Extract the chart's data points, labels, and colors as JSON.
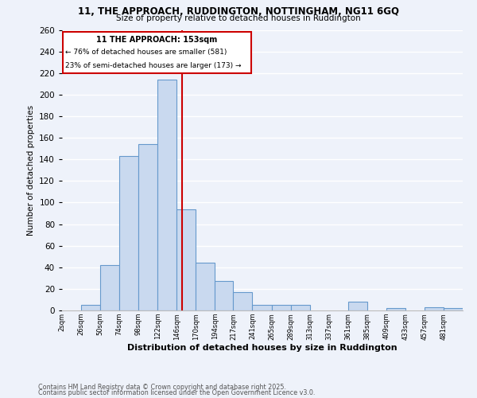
{
  "title1": "11, THE APPROACH, RUDDINGTON, NOTTINGHAM, NG11 6GQ",
  "title2": "Size of property relative to detached houses in Ruddington",
  "xlabel": "Distribution of detached houses by size in Ruddington",
  "ylabel": "Number of detached properties",
  "footer1": "Contains HM Land Registry data © Crown copyright and database right 2025.",
  "footer2": "Contains public sector information licensed under the Open Government Licence v3.0.",
  "annotation_title": "11 THE APPROACH: 153sqm",
  "annotation_line1": "← 76% of detached houses are smaller (581)",
  "annotation_line2": "23% of semi-detached houses are larger (173) →",
  "property_size": 153,
  "bar_labels": [
    "2sqm",
    "26sqm",
    "50sqm",
    "74sqm",
    "98sqm",
    "122sqm",
    "146sqm",
    "170sqm",
    "194sqm",
    "217sqm",
    "241sqm",
    "265sqm",
    "289sqm",
    "313sqm",
    "337sqm",
    "361sqm",
    "385sqm",
    "409sqm",
    "433sqm",
    "457sqm",
    "481sqm"
  ],
  "bar_values": [
    0,
    5,
    42,
    143,
    154,
    214,
    94,
    44,
    27,
    17,
    5,
    5,
    5,
    0,
    0,
    8,
    0,
    2,
    0,
    3,
    2
  ],
  "bar_edges": [
    2,
    26,
    50,
    74,
    98,
    122,
    146,
    170,
    194,
    217,
    241,
    265,
    289,
    313,
    337,
    361,
    385,
    409,
    433,
    457,
    481,
    505
  ],
  "bar_color": "#c9d9ef",
  "bar_edge_color": "#6699cc",
  "vline_x": 153,
  "vline_color": "#cc0000",
  "box_color": "#cc0000",
  "ylim": [
    0,
    260
  ],
  "yticks": [
    0,
    20,
    40,
    60,
    80,
    100,
    120,
    140,
    160,
    180,
    200,
    220,
    240,
    260
  ],
  "bg_color": "#eef2fa",
  "grid_color": "#ffffff"
}
